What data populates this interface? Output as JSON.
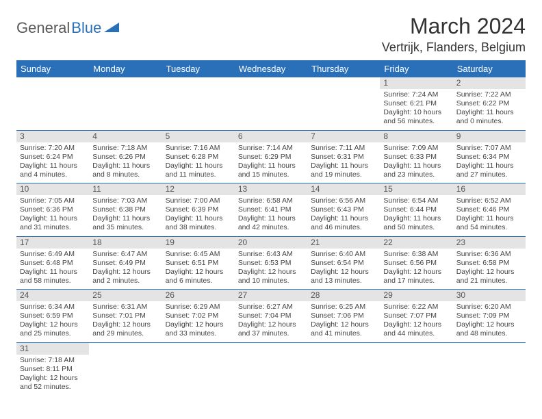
{
  "logo": {
    "part1": "General",
    "part2": "Blue"
  },
  "title": "March 2024",
  "location": "Vertrijk, Flanders, Belgium",
  "weekdays": [
    "Sunday",
    "Monday",
    "Tuesday",
    "Wednesday",
    "Thursday",
    "Friday",
    "Saturday"
  ],
  "colors": {
    "header_bg": "#2a70b8",
    "header_fg": "#ffffff",
    "daynum_bg": "#e4e4e4",
    "cell_border": "#2a70b8",
    "logo_gray": "#5a5a5a",
    "logo_blue": "#2a70b8"
  },
  "weeks": [
    [
      {
        "n": "",
        "sr": "",
        "ss": "",
        "dl": ""
      },
      {
        "n": "",
        "sr": "",
        "ss": "",
        "dl": ""
      },
      {
        "n": "",
        "sr": "",
        "ss": "",
        "dl": ""
      },
      {
        "n": "",
        "sr": "",
        "ss": "",
        "dl": ""
      },
      {
        "n": "",
        "sr": "",
        "ss": "",
        "dl": ""
      },
      {
        "n": "1",
        "sr": "Sunrise: 7:24 AM",
        "ss": "Sunset: 6:21 PM",
        "dl": "Daylight: 10 hours and 56 minutes."
      },
      {
        "n": "2",
        "sr": "Sunrise: 7:22 AM",
        "ss": "Sunset: 6:22 PM",
        "dl": "Daylight: 11 hours and 0 minutes."
      }
    ],
    [
      {
        "n": "3",
        "sr": "Sunrise: 7:20 AM",
        "ss": "Sunset: 6:24 PM",
        "dl": "Daylight: 11 hours and 4 minutes."
      },
      {
        "n": "4",
        "sr": "Sunrise: 7:18 AM",
        "ss": "Sunset: 6:26 PM",
        "dl": "Daylight: 11 hours and 8 minutes."
      },
      {
        "n": "5",
        "sr": "Sunrise: 7:16 AM",
        "ss": "Sunset: 6:28 PM",
        "dl": "Daylight: 11 hours and 11 minutes."
      },
      {
        "n": "6",
        "sr": "Sunrise: 7:14 AM",
        "ss": "Sunset: 6:29 PM",
        "dl": "Daylight: 11 hours and 15 minutes."
      },
      {
        "n": "7",
        "sr": "Sunrise: 7:11 AM",
        "ss": "Sunset: 6:31 PM",
        "dl": "Daylight: 11 hours and 19 minutes."
      },
      {
        "n": "8",
        "sr": "Sunrise: 7:09 AM",
        "ss": "Sunset: 6:33 PM",
        "dl": "Daylight: 11 hours and 23 minutes."
      },
      {
        "n": "9",
        "sr": "Sunrise: 7:07 AM",
        "ss": "Sunset: 6:34 PM",
        "dl": "Daylight: 11 hours and 27 minutes."
      }
    ],
    [
      {
        "n": "10",
        "sr": "Sunrise: 7:05 AM",
        "ss": "Sunset: 6:36 PM",
        "dl": "Daylight: 11 hours and 31 minutes."
      },
      {
        "n": "11",
        "sr": "Sunrise: 7:03 AM",
        "ss": "Sunset: 6:38 PM",
        "dl": "Daylight: 11 hours and 35 minutes."
      },
      {
        "n": "12",
        "sr": "Sunrise: 7:00 AM",
        "ss": "Sunset: 6:39 PM",
        "dl": "Daylight: 11 hours and 38 minutes."
      },
      {
        "n": "13",
        "sr": "Sunrise: 6:58 AM",
        "ss": "Sunset: 6:41 PM",
        "dl": "Daylight: 11 hours and 42 minutes."
      },
      {
        "n": "14",
        "sr": "Sunrise: 6:56 AM",
        "ss": "Sunset: 6:43 PM",
        "dl": "Daylight: 11 hours and 46 minutes."
      },
      {
        "n": "15",
        "sr": "Sunrise: 6:54 AM",
        "ss": "Sunset: 6:44 PM",
        "dl": "Daylight: 11 hours and 50 minutes."
      },
      {
        "n": "16",
        "sr": "Sunrise: 6:52 AM",
        "ss": "Sunset: 6:46 PM",
        "dl": "Daylight: 11 hours and 54 minutes."
      }
    ],
    [
      {
        "n": "17",
        "sr": "Sunrise: 6:49 AM",
        "ss": "Sunset: 6:48 PM",
        "dl": "Daylight: 11 hours and 58 minutes."
      },
      {
        "n": "18",
        "sr": "Sunrise: 6:47 AM",
        "ss": "Sunset: 6:49 PM",
        "dl": "Daylight: 12 hours and 2 minutes."
      },
      {
        "n": "19",
        "sr": "Sunrise: 6:45 AM",
        "ss": "Sunset: 6:51 PM",
        "dl": "Daylight: 12 hours and 6 minutes."
      },
      {
        "n": "20",
        "sr": "Sunrise: 6:43 AM",
        "ss": "Sunset: 6:53 PM",
        "dl": "Daylight: 12 hours and 10 minutes."
      },
      {
        "n": "21",
        "sr": "Sunrise: 6:40 AM",
        "ss": "Sunset: 6:54 PM",
        "dl": "Daylight: 12 hours and 13 minutes."
      },
      {
        "n": "22",
        "sr": "Sunrise: 6:38 AM",
        "ss": "Sunset: 6:56 PM",
        "dl": "Daylight: 12 hours and 17 minutes."
      },
      {
        "n": "23",
        "sr": "Sunrise: 6:36 AM",
        "ss": "Sunset: 6:58 PM",
        "dl": "Daylight: 12 hours and 21 minutes."
      }
    ],
    [
      {
        "n": "24",
        "sr": "Sunrise: 6:34 AM",
        "ss": "Sunset: 6:59 PM",
        "dl": "Daylight: 12 hours and 25 minutes."
      },
      {
        "n": "25",
        "sr": "Sunrise: 6:31 AM",
        "ss": "Sunset: 7:01 PM",
        "dl": "Daylight: 12 hours and 29 minutes."
      },
      {
        "n": "26",
        "sr": "Sunrise: 6:29 AM",
        "ss": "Sunset: 7:02 PM",
        "dl": "Daylight: 12 hours and 33 minutes."
      },
      {
        "n": "27",
        "sr": "Sunrise: 6:27 AM",
        "ss": "Sunset: 7:04 PM",
        "dl": "Daylight: 12 hours and 37 minutes."
      },
      {
        "n": "28",
        "sr": "Sunrise: 6:25 AM",
        "ss": "Sunset: 7:06 PM",
        "dl": "Daylight: 12 hours and 41 minutes."
      },
      {
        "n": "29",
        "sr": "Sunrise: 6:22 AM",
        "ss": "Sunset: 7:07 PM",
        "dl": "Daylight: 12 hours and 44 minutes."
      },
      {
        "n": "30",
        "sr": "Sunrise: 6:20 AM",
        "ss": "Sunset: 7:09 PM",
        "dl": "Daylight: 12 hours and 48 minutes."
      }
    ],
    [
      {
        "n": "31",
        "sr": "Sunrise: 7:18 AM",
        "ss": "Sunset: 8:11 PM",
        "dl": "Daylight: 12 hours and 52 minutes."
      },
      {
        "n": "",
        "sr": "",
        "ss": "",
        "dl": ""
      },
      {
        "n": "",
        "sr": "",
        "ss": "",
        "dl": ""
      },
      {
        "n": "",
        "sr": "",
        "ss": "",
        "dl": ""
      },
      {
        "n": "",
        "sr": "",
        "ss": "",
        "dl": ""
      },
      {
        "n": "",
        "sr": "",
        "ss": "",
        "dl": ""
      },
      {
        "n": "",
        "sr": "",
        "ss": "",
        "dl": ""
      }
    ]
  ]
}
